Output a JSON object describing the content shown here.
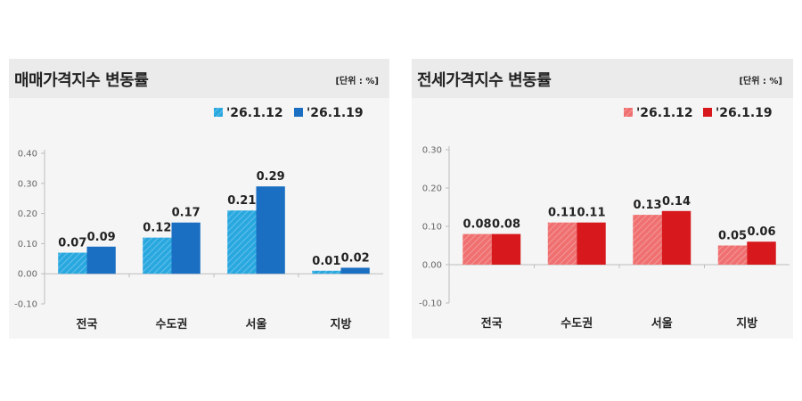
{
  "chart_data": [
    {
      "type": "bar",
      "title": "매매가격지수 변동률",
      "unit": "[단위 : %]",
      "categories": [
        "전국",
        "수도권",
        "서울",
        "지방"
      ],
      "series": [
        {
          "name": "'26.1.12",
          "values": [
            0.07,
            0.12,
            0.21,
            0.01
          ],
          "color": "#29a8e0"
        },
        {
          "name": "'26.1.19",
          "values": [
            0.09,
            0.17,
            0.29,
            0.02
          ],
          "color": "#1a6fc2"
        }
      ],
      "value_labels": [
        [
          "0.07",
          "0.12",
          "0.21",
          "0.01"
        ],
        [
          "0.09",
          "0.17",
          "0.29",
          "0.02"
        ]
      ],
      "yticks": [
        "0.40",
        "0.30",
        "0.20",
        "0.10",
        "0.00",
        "-0.10"
      ],
      "ylim": [
        -0.1,
        0.4
      ],
      "legend_position": "top-right"
    },
    {
      "type": "bar",
      "title": "전세가격지수 변동률",
      "unit": "[단위 : %]",
      "categories": [
        "전국",
        "수도권",
        "서울",
        "지방"
      ],
      "series": [
        {
          "name": "'26.1.12",
          "values": [
            0.08,
            0.11,
            0.13,
            0.05
          ],
          "color": "#f07070"
        },
        {
          "name": "'26.1.19",
          "values": [
            0.08,
            0.11,
            0.14,
            0.06
          ],
          "color": "#d7191d"
        }
      ],
      "value_labels": [
        [
          "0.08",
          "0.11",
          "0.13",
          "0.05"
        ],
        [
          "0.08",
          "0.11",
          "0.14",
          "0.06"
        ]
      ],
      "yticks": [
        "0.30",
        "0.20",
        "0.10",
        "0.00",
        "-0.10"
      ],
      "ylim": [
        -0.1,
        0.3
      ],
      "legend_position": "top-right"
    }
  ]
}
